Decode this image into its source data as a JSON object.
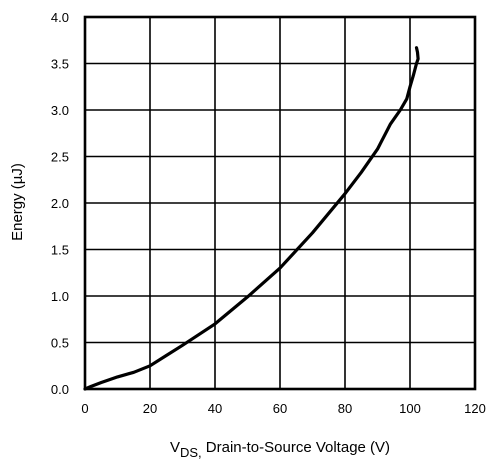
{
  "chart_data": {
    "type": "line",
    "xlabel_main": "V",
    "xlabel_sub": "DS,",
    "xlabel_rest": " Drain-to-Source Voltage (V)",
    "ylabel": "Energy (µJ)",
    "xlim": [
      0,
      120
    ],
    "ylim": [
      0,
      4.0
    ],
    "x_ticks": [
      "0",
      "20",
      "40",
      "60",
      "80",
      "100",
      "120"
    ],
    "y_ticks": [
      "0.0",
      "0.5",
      "1.0",
      "1.5",
      "2.0",
      "2.5",
      "3.0",
      "3.5",
      "4.0"
    ],
    "grid": true,
    "series": [
      {
        "color": "#000000",
        "x": [
          0,
          2,
          5,
          10,
          15,
          20,
          25,
          30,
          40,
          50,
          60,
          70,
          80,
          85,
          90,
          94,
          97,
          99,
          100,
          101,
          102,
          102.5,
          102.3,
          102.0
        ],
        "y": [
          0.0,
          0.03,
          0.07,
          0.13,
          0.18,
          0.25,
          0.36,
          0.47,
          0.7,
          0.99,
          1.3,
          1.68,
          2.1,
          2.33,
          2.58,
          2.85,
          3.0,
          3.12,
          3.25,
          3.37,
          3.5,
          3.55,
          3.62,
          3.67
        ]
      }
    ]
  }
}
